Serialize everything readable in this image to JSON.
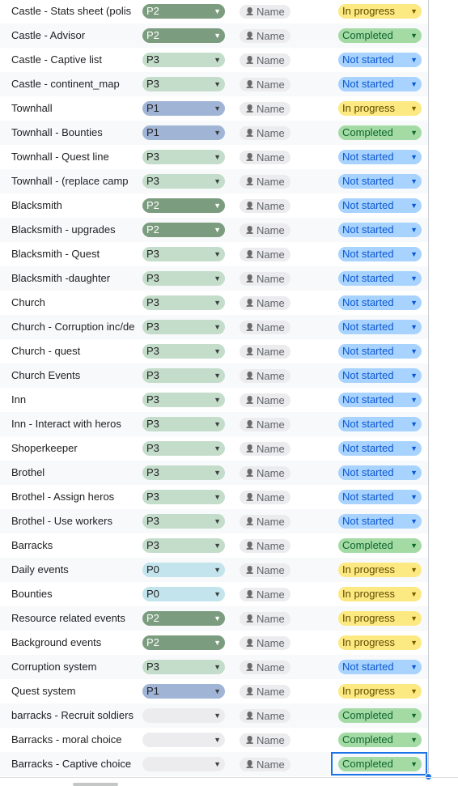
{
  "columns": {
    "person_label": "Name"
  },
  "colors": {
    "P0": "#c3e4ec",
    "P1": "#a0b4d5",
    "P2": "#7b9c7e",
    "P3": "#c4ddca",
    "empty": "#ececee",
    "In progress": "#fde981",
    "Completed": "#a4dba4",
    "Not started": "#a8d3ff",
    "selection": "#1a73e8"
  },
  "rows": [
    {
      "task": "Castle - Stats sheet (polis",
      "priority": "P2",
      "status": "In progress"
    },
    {
      "task": "Castle - Advisor",
      "priority": "P2",
      "status": "Completed"
    },
    {
      "task": "Castle - Captive list",
      "priority": "P3",
      "status": "Not started"
    },
    {
      "task": "Castle - continent_map",
      "priority": "P3",
      "status": "Not started"
    },
    {
      "task": "Townhall",
      "priority": "P1",
      "status": "In progress"
    },
    {
      "task": "Townhall - Bounties",
      "priority": "P1",
      "status": "Completed"
    },
    {
      "task": "Townhall - Quest line",
      "priority": "P3",
      "status": "Not started"
    },
    {
      "task": "Townhall - (replace camp",
      "priority": "P3",
      "status": "Not started"
    },
    {
      "task": "Blacksmith",
      "priority": "P2",
      "status": "Not started"
    },
    {
      "task": "Blacksmith - upgrades",
      "priority": "P2",
      "status": "Not started"
    },
    {
      "task": "Blacksmith - Quest",
      "priority": "P3",
      "status": "Not started"
    },
    {
      "task": "Blacksmith -daughter",
      "priority": "P3",
      "status": "Not started"
    },
    {
      "task": "Church",
      "priority": "P3",
      "status": "Not started"
    },
    {
      "task": "Church - Corruption inc/de",
      "priority": "P3",
      "status": "Not started"
    },
    {
      "task": "Church - quest",
      "priority": "P3",
      "status": "Not started"
    },
    {
      "task": "Church Events",
      "priority": "P3",
      "status": "Not started"
    },
    {
      "task": "Inn",
      "priority": "P3",
      "status": "Not started"
    },
    {
      "task": "Inn - Interact with heros",
      "priority": "P3",
      "status": "Not started"
    },
    {
      "task": "Shoperkeeper",
      "priority": "P3",
      "status": "Not started"
    },
    {
      "task": "Brothel",
      "priority": "P3",
      "status": "Not started"
    },
    {
      "task": "Brothel - Assign heros",
      "priority": "P3",
      "status": "Not started"
    },
    {
      "task": "Brothel - Use workers",
      "priority": "P3",
      "status": "Not started"
    },
    {
      "task": "Barracks",
      "priority": "P3",
      "status": "Completed"
    },
    {
      "task": "Daily events",
      "priority": "P0",
      "status": "In progress"
    },
    {
      "task": "Bounties",
      "priority": "P0",
      "status": "In progress"
    },
    {
      "task": "Resource related events",
      "priority": "P2",
      "status": "In progress"
    },
    {
      "task": "Background events",
      "priority": "P2",
      "status": "In progress"
    },
    {
      "task": "Corruption system",
      "priority": "P3",
      "status": "Not started"
    },
    {
      "task": "Quest system",
      "priority": "P1",
      "status": "In progress"
    },
    {
      "task": "barracks - Recruit soldiers",
      "priority": "",
      "status": "Completed"
    },
    {
      "task": "Barracks - moral choice",
      "priority": "",
      "status": "Completed"
    },
    {
      "task": "Barracks - Captive choice",
      "priority": "",
      "status": "Completed"
    }
  ],
  "selected_cell": {
    "row": 31,
    "column": "status"
  }
}
